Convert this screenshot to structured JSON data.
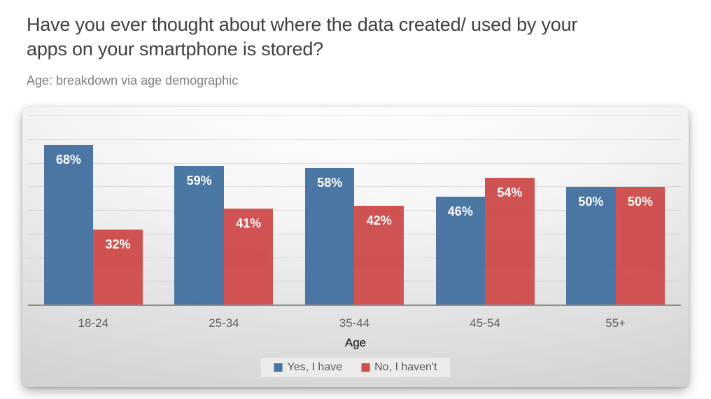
{
  "header": {
    "title_lines": [
      "Have you ever thought about where the data created/ used by your",
      "apps on your smartphone is stored?"
    ],
    "subtitle": "Age: breakdown via age demographic"
  },
  "chart_data": {
    "type": "bar",
    "title": "Have you ever thought about where the data created/ used by your apps on your smartphone is stored?",
    "subtitle": "Age: breakdown via age demographic",
    "categories": [
      "18-24",
      "25-34",
      "35-44",
      "45-54",
      "55+"
    ],
    "series": [
      {
        "name": "Yes, I have",
        "color": "#4673a2",
        "values": [
          68,
          59,
          58,
          46,
          50
        ]
      },
      {
        "name": "No, I haven't",
        "color": "#cf4e4e",
        "values": [
          32,
          41,
          42,
          54,
          50
        ]
      }
    ],
    "value_suffix": "%",
    "data_labels": "inside-end",
    "xlabel": "Age",
    "ylabel": "",
    "ylim": [
      0,
      80
    ],
    "gridline_step": 10,
    "grid": true,
    "y_axis_labels_visible": false,
    "legend_position": "bottom"
  }
}
